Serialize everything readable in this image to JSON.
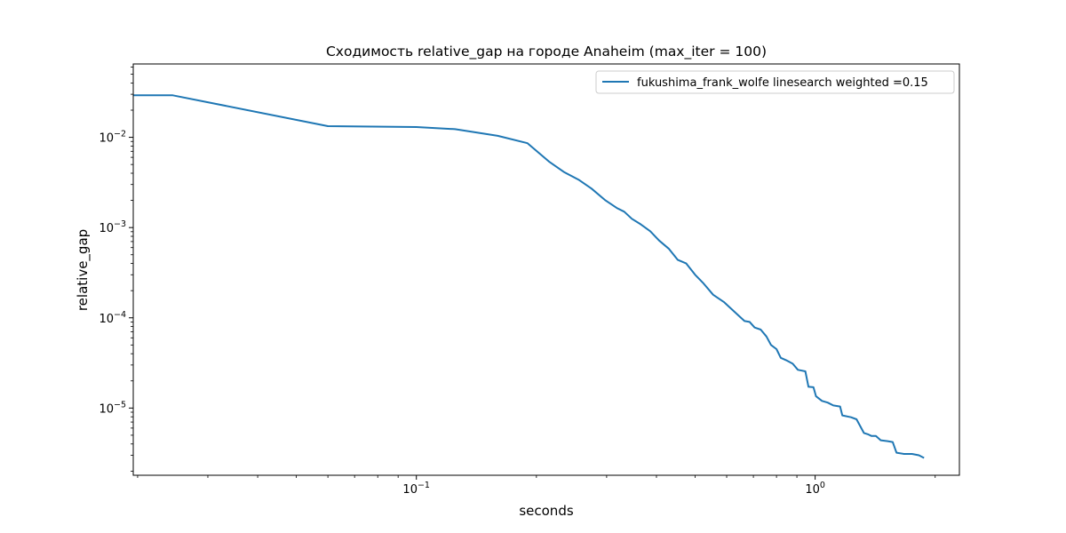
{
  "chart_data": {
    "type": "line",
    "title": "Сходимость relative_gap на городе Anaheim  (max_iter = 100)",
    "xlabel": "seconds",
    "ylabel": "relative_gap",
    "xscale": "log",
    "yscale": "log",
    "xlim": [
      0.0195,
      2.3
    ],
    "ylim": [
      1.8e-06,
      0.065
    ],
    "grid": false,
    "legend_position": "top-right",
    "x_ticks": [
      {
        "value": 0.1,
        "base": "10",
        "exp": "−1"
      },
      {
        "value": 1.0,
        "base": "10",
        "exp": "0"
      }
    ],
    "y_ticks": [
      {
        "value": 0.01,
        "base": "10",
        "exp": "−2"
      },
      {
        "value": 0.001,
        "base": "10",
        "exp": "−3"
      },
      {
        "value": 0.0001,
        "base": "10",
        "exp": "−4"
      },
      {
        "value": 1e-05,
        "base": "10",
        "exp": "−5"
      }
    ],
    "series": [
      {
        "name": "fukushima_frank_wolfe linesearch weighted =0.15",
        "color": "#1f77b4",
        "points": [
          [
            0.0195,
            0.0292
          ],
          [
            0.0245,
            0.0292
          ],
          [
            0.06,
            0.0133
          ],
          [
            0.1,
            0.013
          ],
          [
            0.125,
            0.0123
          ],
          [
            0.16,
            0.0104
          ],
          [
            0.19,
            0.0086
          ],
          [
            0.215,
            0.0054
          ],
          [
            0.235,
            0.0041
          ],
          [
            0.255,
            0.0034
          ],
          [
            0.275,
            0.0027
          ],
          [
            0.298,
            0.002
          ],
          [
            0.318,
            0.00165
          ],
          [
            0.332,
            0.0015
          ],
          [
            0.347,
            0.00125
          ],
          [
            0.365,
            0.00109
          ],
          [
            0.386,
            0.00091
          ],
          [
            0.406,
            0.00072
          ],
          [
            0.43,
            0.00058
          ],
          [
            0.452,
            0.00044
          ],
          [
            0.475,
            0.0004
          ],
          [
            0.5,
            0.0003
          ],
          [
            0.525,
            0.00024
          ],
          [
            0.555,
            0.00018
          ],
          [
            0.59,
            0.00015
          ],
          [
            0.63,
            0.000115
          ],
          [
            0.665,
            9.2e-05
          ],
          [
            0.685,
            9e-05
          ],
          [
            0.705,
            7.8e-05
          ],
          [
            0.73,
            7.4e-05
          ],
          [
            0.755,
            6.2e-05
          ],
          [
            0.775,
            5e-05
          ],
          [
            0.8,
            4.5e-05
          ],
          [
            0.82,
            3.6e-05
          ],
          [
            0.845,
            3.4e-05
          ],
          [
            0.878,
            3.1e-05
          ],
          [
            0.905,
            2.65e-05
          ],
          [
            0.945,
            2.55e-05
          ],
          [
            0.962,
            1.72e-05
          ],
          [
            0.99,
            1.7e-05
          ],
          [
            1.005,
            1.35e-05
          ],
          [
            1.04,
            1.2e-05
          ],
          [
            1.075,
            1.15e-05
          ],
          [
            1.11,
            1.07e-05
          ],
          [
            1.155,
            1.04e-05
          ],
          [
            1.17,
            8.3e-06
          ],
          [
            1.23,
            7.9e-06
          ],
          [
            1.27,
            7.5e-06
          ],
          [
            1.325,
            5.3e-06
          ],
          [
            1.36,
            5.1e-06
          ],
          [
            1.385,
            4.9e-06
          ],
          [
            1.42,
            4.9e-06
          ],
          [
            1.46,
            4.4e-06
          ],
          [
            1.52,
            4.3e-06
          ],
          [
            1.565,
            4.2e-06
          ],
          [
            1.6,
            3.2e-06
          ],
          [
            1.67,
            3.1e-06
          ],
          [
            1.75,
            3.1e-06
          ],
          [
            1.82,
            3e-06
          ],
          [
            1.875,
            2.8e-06
          ]
        ]
      }
    ]
  }
}
